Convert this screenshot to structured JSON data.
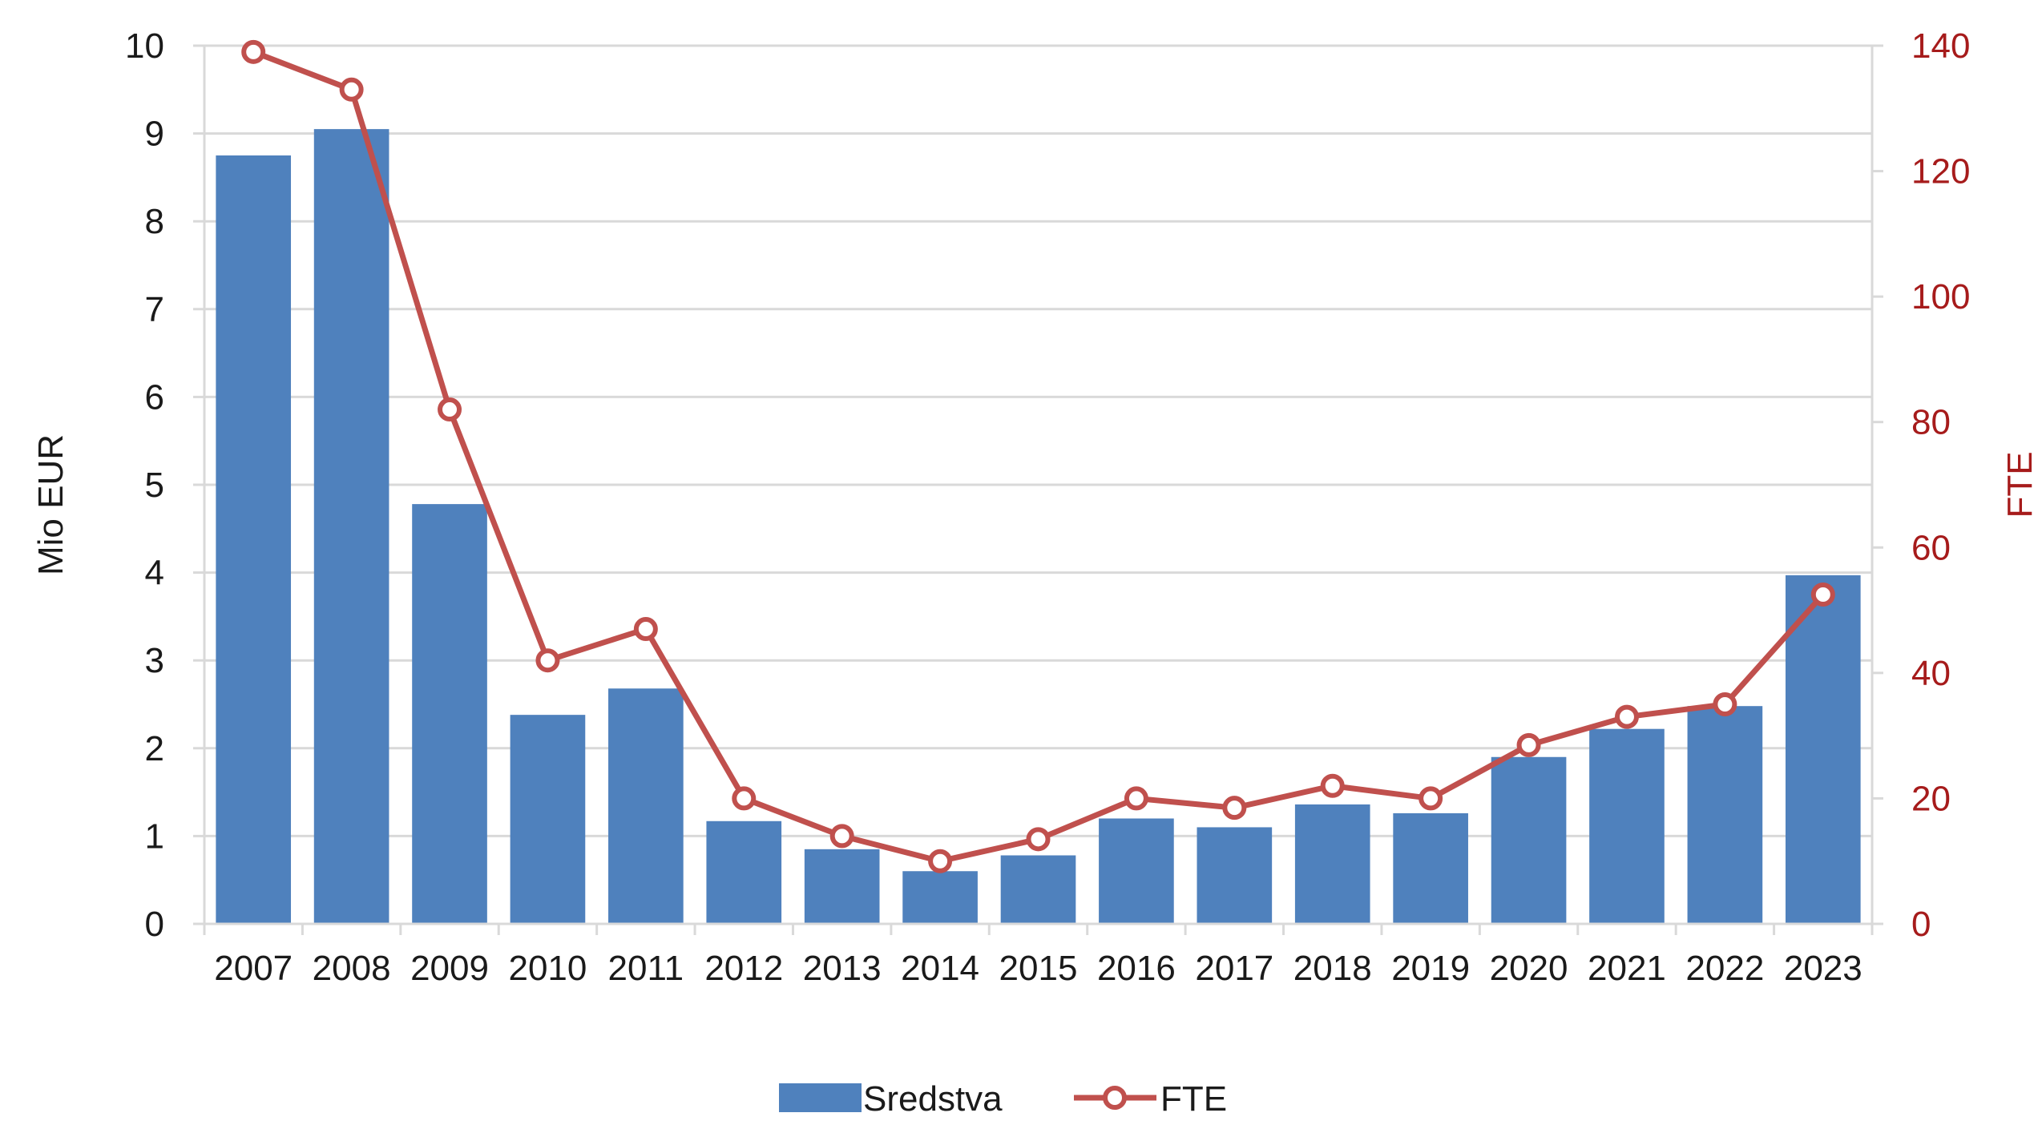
{
  "chart_data": {
    "type": "bar",
    "categories": [
      "2007",
      "2008",
      "2009",
      "2010",
      "2011",
      "2012",
      "2013",
      "2014",
      "2015",
      "2016",
      "2017",
      "2018",
      "2019",
      "2020",
      "2021",
      "2022",
      "2023"
    ],
    "series": [
      {
        "name": "Sredstva",
        "type": "bar",
        "axis": "left",
        "color": "#4f81bd",
        "values": [
          8.75,
          9.05,
          4.78,
          2.38,
          2.68,
          1.17,
          0.85,
          0.6,
          0.78,
          1.2,
          1.1,
          1.36,
          1.26,
          1.9,
          2.22,
          2.48,
          3.97
        ]
      },
      {
        "name": "FTE",
        "type": "line",
        "axis": "right",
        "color": "#c0504d",
        "values": [
          139,
          133,
          82,
          42,
          47,
          20,
          14,
          10,
          13.5,
          20,
          18.5,
          22,
          20,
          28.5,
          33,
          35,
          52.5
        ]
      }
    ],
    "ylabel_left": "Mio EUR",
    "ylabel_right": "FTE",
    "ylim_left": [
      0,
      10
    ],
    "ylim_right": [
      0,
      140
    ],
    "yticks_left": [
      "0",
      "1",
      "2",
      "3",
      "4",
      "5",
      "6",
      "7",
      "8",
      "9",
      "10"
    ],
    "yticks_right": [
      "0",
      "20",
      "40",
      "60",
      "80",
      "100",
      "120",
      "140"
    ],
    "grid": true,
    "legend_position": "bottom",
    "colors": {
      "right_axis_text": "#a61b1b",
      "grid": "#d9d9d9"
    }
  }
}
